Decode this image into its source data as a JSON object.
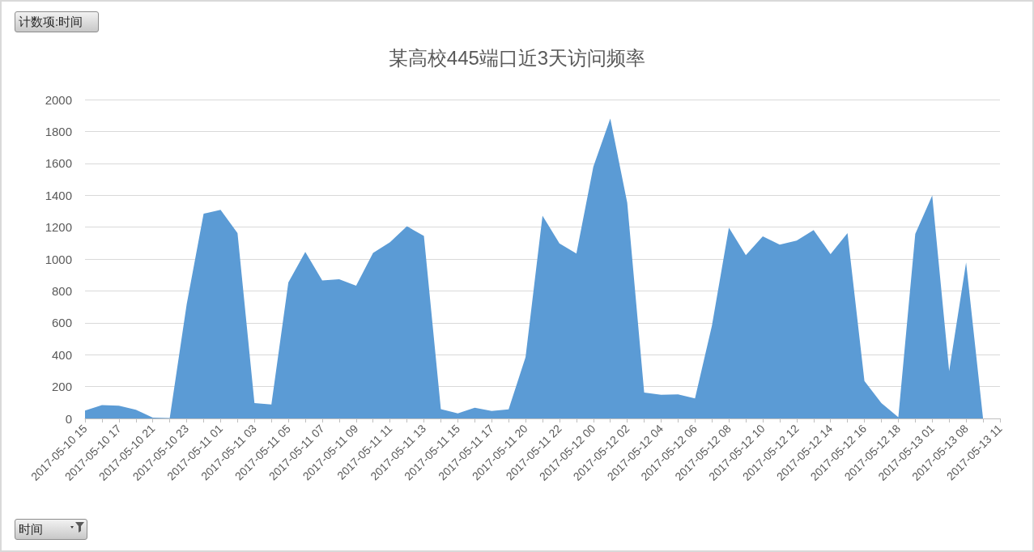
{
  "chart_data": {
    "type": "area",
    "title": "某高校445端口近3天访问频率",
    "annotations": [
      "计数项:时间",
      "时间"
    ],
    "categories": [
      "2017-05-10 15",
      null,
      "2017-05-10 17",
      null,
      "2017-05-10 21",
      null,
      "2017-05-10 23",
      null,
      "2017-05-11 01",
      null,
      "2017-05-11 03",
      null,
      "2017-05-11 05",
      null,
      "2017-05-11 07",
      null,
      "2017-05-11 09",
      null,
      "2017-05-11 11",
      null,
      "2017-05-11 13",
      null,
      "2017-05-11 15",
      null,
      "2017-05-11 17",
      null,
      "2017-05-11 20",
      null,
      "2017-05-11 22",
      null,
      "2017-05-12 00",
      null,
      "2017-05-12 02",
      null,
      "2017-05-12 04",
      null,
      "2017-05-12 06",
      null,
      "2017-05-12 08",
      null,
      "2017-05-12 10",
      null,
      "2017-05-12 12",
      null,
      "2017-05-12 14",
      null,
      "2017-05-12 16",
      null,
      "2017-05-12 18",
      null,
      "2017-05-13 01",
      null,
      "2017-05-13 08",
      null,
      "2017-05-13 11"
    ],
    "series": [
      {
        "color": "#5b9bd5",
        "values": [
          49,
          84,
          80,
          55,
          5,
          3,
          716,
          1284,
          1308,
          1163,
          96,
          87,
          853,
          1044,
          865,
          873,
          833,
          1038,
          1105,
          1205,
          1145,
          59,
          32,
          67,
          47,
          57,
          384,
          1272,
          1098,
          1034,
          1579,
          1881,
          1353,
          163,
          149,
          151,
          126,
          582,
          1197,
          1024,
          1142,
          1090,
          1115,
          1182,
          1031,
          1163,
          235,
          96,
          8,
          1157,
          1398,
          297,
          979,
          0,
          null
        ]
      }
    ],
    "ylim": [
      0,
      2000
    ],
    "yticks": [
      0,
      200,
      400,
      600,
      800,
      1000,
      1200,
      1400,
      1600,
      1800,
      2000
    ],
    "grid": "y"
  }
}
